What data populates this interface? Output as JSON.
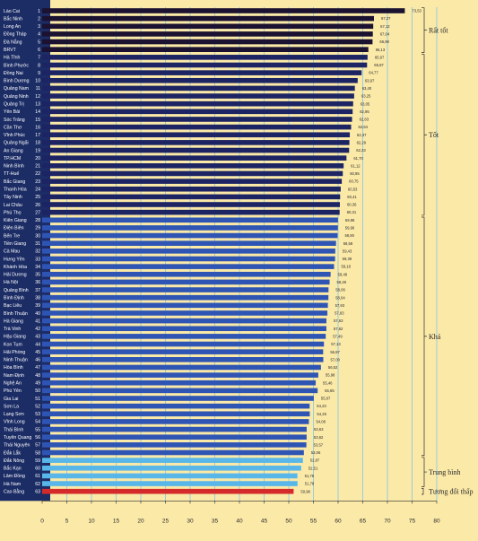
{
  "chart_data": {
    "type": "bar",
    "orientation": "horizontal",
    "xlim": [
      0,
      80
    ],
    "xticks": [
      0,
      5,
      10,
      15,
      20,
      25,
      30,
      35,
      40,
      45,
      50,
      55,
      60,
      65,
      70,
      75,
      80
    ],
    "grid": true,
    "colors": {
      "background": "#fbe9a8",
      "label_panel": "#1c2d66",
      "rat_tot": "#1a1230",
      "tot": "#1c2464",
      "kha": "#2f55b4",
      "trung_binh": "#58b7e8",
      "tuong_doi_thap": "#d42a2a",
      "grid": "#7fc6ee"
    },
    "rows": [
      {
        "rank": 1,
        "name": "Lào Cai",
        "value": 73.53,
        "label": "73,53",
        "group": "rat_tot"
      },
      {
        "rank": 2,
        "name": "Bắc Ninh",
        "value": 67.27,
        "label": "67,27",
        "group": "rat_tot"
      },
      {
        "rank": 3,
        "name": "Long An",
        "value": 67.12,
        "label": "67,12",
        "group": "rat_tot"
      },
      {
        "rank": 4,
        "name": "Đồng Tháp",
        "value": 67.04,
        "label": "67,04",
        "group": "rat_tot"
      },
      {
        "rank": 5,
        "name": "Đà Nẵng",
        "value": 66.98,
        "label": "66,98",
        "group": "rat_tot"
      },
      {
        "rank": 6,
        "name": "BRVT",
        "value": 66.13,
        "label": "66,13",
        "group": "rat_tot"
      },
      {
        "rank": 7,
        "name": "Hà Tĩnh",
        "value": 65.97,
        "label": "65,97",
        "group": "tot"
      },
      {
        "rank": 8,
        "name": "Bình Phước",
        "value": 65.87,
        "label": "65,87",
        "group": "tot"
      },
      {
        "rank": 9,
        "name": "Đồng Nai",
        "value": 64.77,
        "label": "64,77",
        "group": "tot"
      },
      {
        "rank": 10,
        "name": "Bình Dương",
        "value": 63.97,
        "label": "63,97",
        "group": "tot"
      },
      {
        "rank": 11,
        "name": "Quảng Nam",
        "value": 63.4,
        "label": "63,40",
        "group": "tot"
      },
      {
        "rank": 12,
        "name": "Quảng Ninh",
        "value": 63.25,
        "label": "63,25",
        "group": "tot"
      },
      {
        "rank": 13,
        "name": "Quảng Trị",
        "value": 63.05,
        "label": "63,05",
        "group": "tot"
      },
      {
        "rank": 14,
        "name": "Yên Bái",
        "value": 62.95,
        "label": "62,95",
        "group": "tot"
      },
      {
        "rank": 15,
        "name": "Sóc Trăng",
        "value": 62.83,
        "label": "62,83",
        "group": "tot"
      },
      {
        "rank": 16,
        "name": "Cần Thơ",
        "value": 62.64,
        "label": "62,64",
        "group": "tot"
      },
      {
        "rank": 17,
        "name": "Vĩnh Phúc",
        "value": 62.37,
        "label": "62,37",
        "group": "tot"
      },
      {
        "rank": 18,
        "name": "Quảng Ngãi",
        "value": 62.29,
        "label": "62,29",
        "group": "tot"
      },
      {
        "rank": 19,
        "name": "An Giang",
        "value": 62.23,
        "label": "62,23",
        "group": "tot"
      },
      {
        "rank": 20,
        "name": "TP.HCM",
        "value": 61.7,
        "label": "61,70",
        "group": "tot"
      },
      {
        "rank": 21,
        "name": "Ninh Bình",
        "value": 61.12,
        "label": "61,12",
        "group": "tot"
      },
      {
        "rank": 22,
        "name": "TT-Huế",
        "value": 60.95,
        "label": "60,95",
        "group": "tot"
      },
      {
        "rank": 23,
        "name": "Bắc Giang",
        "value": 60.75,
        "label": "60,75",
        "group": "tot"
      },
      {
        "rank": 24,
        "name": "Thanh Hóa",
        "value": 60.53,
        "label": "60,53",
        "group": "tot"
      },
      {
        "rank": 25,
        "name": "Tây Ninh",
        "value": 60.41,
        "label": "60,41",
        "group": "tot"
      },
      {
        "rank": 26,
        "name": "Lai Châu",
        "value": 60.36,
        "label": "60,36",
        "group": "tot"
      },
      {
        "rank": 27,
        "name": "Phú Thọ",
        "value": 60.31,
        "label": "60,31",
        "group": "tot"
      },
      {
        "rank": 28,
        "name": "Kiên Giang",
        "value": 59.98,
        "label": "59,98",
        "group": "kha"
      },
      {
        "rank": 29,
        "name": "Điện Biên",
        "value": 59.96,
        "label": "59,96",
        "group": "kha"
      },
      {
        "rank": 30,
        "name": "Bến Tre",
        "value": 59.9,
        "label": "59,90",
        "group": "kha"
      },
      {
        "rank": 31,
        "name": "Tiền Giang",
        "value": 59.58,
        "label": "59,58",
        "group": "kha"
      },
      {
        "rank": 32,
        "name": "Cà Mau",
        "value": 59.43,
        "label": "59,43",
        "group": "kha"
      },
      {
        "rank": 33,
        "name": "Hưng Yên",
        "value": 59.39,
        "label": "59,39",
        "group": "kha"
      },
      {
        "rank": 34,
        "name": "Khánh Hòa",
        "value": 59.18,
        "label": "59,18",
        "group": "kha"
      },
      {
        "rank": 35,
        "name": "Hải Dương",
        "value": 58.48,
        "label": "58,48",
        "group": "kha"
      },
      {
        "rank": 36,
        "name": "Hà Nội",
        "value": 58.28,
        "label": "58,28",
        "group": "kha"
      },
      {
        "rank": 37,
        "name": "Quảng Bình",
        "value": 58.06,
        "label": "58,06",
        "group": "kha"
      },
      {
        "rank": 38,
        "name": "Bình Định",
        "value": 58.04,
        "label": "58,04",
        "group": "kha"
      },
      {
        "rank": 39,
        "name": "Bạc Liêu",
        "value": 57.93,
        "label": "57,93",
        "group": "kha"
      },
      {
        "rank": 40,
        "name": "Bình Thuận",
        "value": 57.83,
        "label": "57,83",
        "group": "kha"
      },
      {
        "rank": 41,
        "name": "Hà Giang",
        "value": 57.63,
        "label": "57,63",
        "group": "kha"
      },
      {
        "rank": 42,
        "name": "Trà Vinh",
        "value": 57.62,
        "label": "57,62",
        "group": "kha"
      },
      {
        "rank": 43,
        "name": "Hậu Giang",
        "value": 57.49,
        "label": "57,49",
        "group": "kha"
      },
      {
        "rank": 44,
        "name": "Kon Tum",
        "value": 57.13,
        "label": "57,13",
        "group": "kha"
      },
      {
        "rank": 45,
        "name": "Hải Phòng",
        "value": 56.97,
        "label": "56,97",
        "group": "kha"
      },
      {
        "rank": 46,
        "name": "Ninh Thuận",
        "value": 57.0,
        "label": "57,00",
        "group": "kha"
      },
      {
        "rank": 47,
        "name": "Hòa Bình",
        "value": 56.52,
        "label": "56,52",
        "group": "kha"
      },
      {
        "rank": 48,
        "name": "Nam Định",
        "value": 55.98,
        "label": "55,98",
        "group": "kha"
      },
      {
        "rank": 49,
        "name": "Nghệ An",
        "value": 55.46,
        "label": "55,46",
        "group": "kha"
      },
      {
        "rank": 50,
        "name": "Phú Yên",
        "value": 55.85,
        "label": "55,85",
        "group": "kha"
      },
      {
        "rank": 51,
        "name": "Gia Lai",
        "value": 55.07,
        "label": "55,07",
        "group": "kha"
      },
      {
        "rank": 52,
        "name": "Sơn La",
        "value": 54.23,
        "label": "54,23",
        "group": "kha"
      },
      {
        "rank": 53,
        "name": "Lạng Sơn",
        "value": 54.26,
        "label": "54,26",
        "group": "kha"
      },
      {
        "rank": 54,
        "name": "Vĩnh Long",
        "value": 54.08,
        "label": "54,08",
        "group": "kha"
      },
      {
        "rank": 55,
        "name": "Thái Bình",
        "value": 53.63,
        "label": "53,63",
        "group": "kha"
      },
      {
        "rank": 56,
        "name": "Tuyên Quang",
        "value": 53.62,
        "label": "53,62",
        "group": "kha"
      },
      {
        "rank": 57,
        "name": "Thái Nguyên",
        "value": 53.57,
        "label": "53,57",
        "group": "kha"
      },
      {
        "rank": 58,
        "name": "Đắk Lắk",
        "value": 53.06,
        "label": "53,06",
        "group": "kha"
      },
      {
        "rank": 59,
        "name": "Đắk Nông",
        "value": 52.87,
        "label": "52,87",
        "group": "trung_binh"
      },
      {
        "rank": 60,
        "name": "Bắc Kạn",
        "value": 52.51,
        "label": "52,51",
        "group": "trung_binh"
      },
      {
        "rank": 61,
        "name": "Lâm Đồng",
        "value": 51.75,
        "label": "51,75",
        "group": "trung_binh"
      },
      {
        "rank": 62,
        "name": "Hà Nam",
        "value": 51.78,
        "label": "51,78",
        "group": "trung_binh"
      },
      {
        "rank": 63,
        "name": "Cao Bằng",
        "value": 50.98,
        "label": "50,98",
        "group": "tuong_doi_thap"
      }
    ],
    "groups": [
      {
        "key": "rat_tot",
        "label": "Rất tốt",
        "first_rank": 1,
        "last_rank": 6
      },
      {
        "key": "tot",
        "label": "Tốt",
        "first_rank": 7,
        "last_rank": 27
      },
      {
        "key": "kha",
        "label": "Khá",
        "first_rank": 28,
        "last_rank": 58
      },
      {
        "key": "trung_binh",
        "label": "Trung bình",
        "first_rank": 59,
        "last_rank": 62
      },
      {
        "key": "tuong_doi_thap",
        "label": "Tương đối thấp",
        "first_rank": 63,
        "last_rank": 63
      }
    ]
  }
}
